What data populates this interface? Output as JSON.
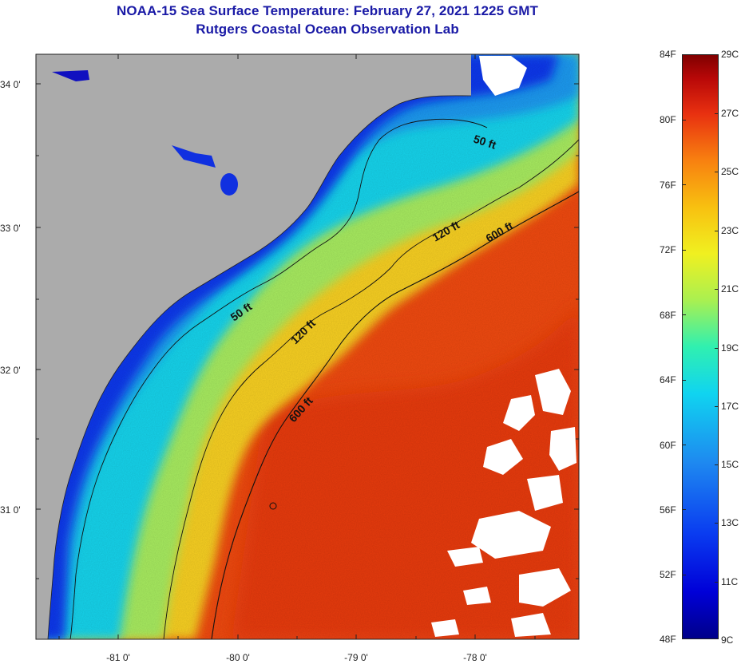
{
  "title": {
    "line1": "NOAA-15 Sea Surface Temperature:  February 27, 2021 1225 GMT",
    "line2": "Rutgers Coastal Ocean Observation Lab"
  },
  "map": {
    "lat_labels": [
      "34 0'",
      "33 0'",
      "32 0'",
      "31 0'"
    ],
    "lon_labels": [
      "-81 0'",
      "-80 0'",
      "-79 0'",
      "-78 0'"
    ],
    "contour_labels": [
      "50 ft",
      "120 ft",
      "600 ft",
      "50 ft",
      "120 ft",
      "600 ft"
    ],
    "colors": {
      "land": "#ababab",
      "cloud": "#ffffff",
      "cold": "#0a2ef0",
      "mid": "#18d0f0",
      "warm_green": "#b0f060",
      "warm_yellow": "#f8d820",
      "hot": "#f04010"
    }
  },
  "colorbar": {
    "fahrenheit": [
      "84F",
      "80F",
      "76F",
      "72F",
      "68F",
      "64F",
      "60F",
      "56F",
      "52F",
      "48F"
    ],
    "celsius": [
      "29C",
      "27C",
      "25C",
      "23C",
      "21C",
      "19C",
      "17C",
      "15C",
      "13C",
      "11C",
      "9C"
    ]
  }
}
